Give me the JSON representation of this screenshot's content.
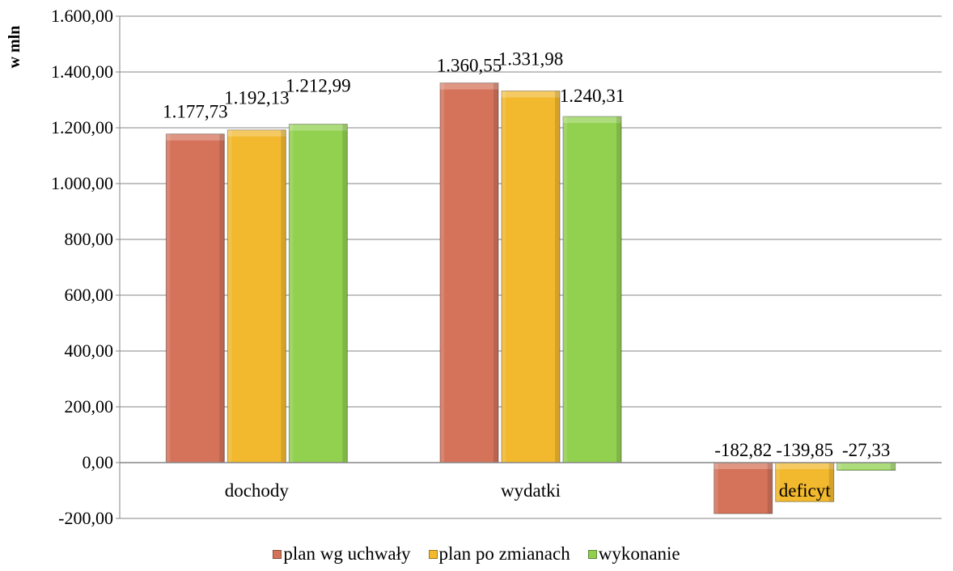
{
  "chart_data": {
    "type": "bar",
    "title": "",
    "xlabel": "",
    "ylabel": "w mln",
    "ylim": [
      -200,
      1600
    ],
    "yticks": [
      -200,
      0,
      200,
      400,
      600,
      800,
      1000,
      1200,
      1400,
      1600
    ],
    "ytick_labels": [
      "-200,00",
      "0,00",
      "200,00",
      "400,00",
      "600,00",
      "800,00",
      "1.000,00",
      "1.200,00",
      "1.400,00",
      "1.600,00"
    ],
    "grid": true,
    "legend_position": "bottom",
    "categories": [
      "dochody",
      "wydatki",
      "deficyt"
    ],
    "series": [
      {
        "name": "plan wg uchwały",
        "color": "#D4735A",
        "values": [
          1177.73,
          1360.55,
          -182.82
        ],
        "labels": [
          "1.177,73",
          "1.360,55",
          "-182,82"
        ]
      },
      {
        "name": "plan po zmianach",
        "color": "#F2B92E",
        "values": [
          1192.13,
          1331.98,
          -139.85
        ],
        "labels": [
          "1.192,13",
          "1.331,98",
          "-139,85"
        ]
      },
      {
        "name": "wykonanie",
        "color": "#92D050",
        "values": [
          1212.99,
          1240.31,
          -27.33
        ],
        "labels": [
          "1.212,99",
          "1.240,31",
          "-27,33"
        ]
      }
    ]
  }
}
